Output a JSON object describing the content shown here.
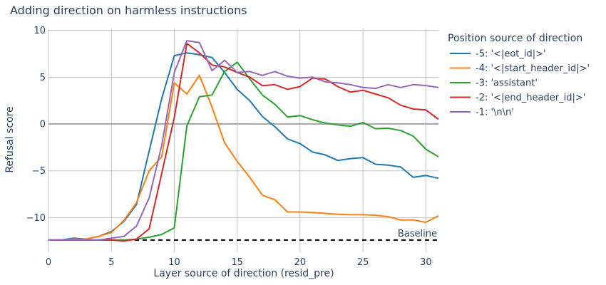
{
  "chart_data": {
    "type": "line",
    "title": "Adding direction on harmless instructions",
    "xlabel": "Layer source of direction (resid_pre)",
    "ylabel": "Refusal score",
    "xlim": [
      0,
      31
    ],
    "ylim": [
      -13.7,
      10.2
    ],
    "xticks": [
      0,
      5,
      10,
      15,
      20,
      25,
      30
    ],
    "yticks": [
      -10,
      -5,
      0,
      5,
      10
    ],
    "grid": true,
    "legend_title": "Position source of direction",
    "legend_position": "right",
    "baseline": {
      "label": "Baseline",
      "value": -12.4,
      "color": "#000000"
    },
    "x": [
      0,
      1,
      2,
      3,
      4,
      5,
      6,
      7,
      8,
      9,
      10,
      11,
      12,
      13,
      14,
      15,
      16,
      17,
      18,
      19,
      20,
      21,
      22,
      23,
      24,
      25,
      26,
      27,
      28,
      29,
      30,
      31
    ],
    "series": [
      {
        "name": "-5: '<|eot_id|>'",
        "color": "#1f77b4",
        "values": [
          -12.4,
          -12.4,
          -12.2,
          -12.3,
          -12.0,
          -11.5,
          -10.4,
          -8.6,
          -2.9,
          2.7,
          7.3,
          7.6,
          7.4,
          7.1,
          5.5,
          3.7,
          2.5,
          0.8,
          -0.3,
          -1.6,
          -2.1,
          -3.0,
          -3.3,
          -3.9,
          -3.7,
          -3.6,
          -4.3,
          -4.4,
          -4.6,
          -5.7,
          -5.5,
          -5.8
        ]
      },
      {
        "name": "-4: '<|start_header_id|>'",
        "color": "#ff7f0e",
        "values": [
          -12.4,
          -12.4,
          -12.3,
          -12.3,
          -12.0,
          -11.6,
          -10.3,
          -8.4,
          -5.0,
          -3.5,
          4.4,
          3.2,
          5.2,
          1.8,
          -2.0,
          -4.0,
          -5.7,
          -7.6,
          -8.1,
          -9.4,
          -9.4,
          -9.45,
          -9.55,
          -9.65,
          -9.7,
          -9.7,
          -9.75,
          -9.9,
          -10.25,
          -10.25,
          -10.5,
          -9.8
        ]
      },
      {
        "name": "-3: 'assistant'",
        "color": "#2ca02c",
        "values": [
          -12.4,
          -12.4,
          -12.4,
          -12.4,
          -12.4,
          -12.4,
          -12.4,
          -12.3,
          -12.1,
          -11.8,
          -11.1,
          -0.2,
          2.9,
          3.1,
          5.6,
          6.6,
          4.8,
          3.1,
          2.1,
          0.75,
          0.9,
          0.45,
          0.1,
          -0.1,
          -0.25,
          0.15,
          -0.5,
          -0.45,
          -0.7,
          -1.3,
          -2.7,
          -3.5
        ]
      },
      {
        "name": "-2: '<|end_header_id|>'",
        "color": "#d62728",
        "values": [
          -12.4,
          -12.4,
          -12.4,
          -12.4,
          -12.4,
          -12.4,
          -12.5,
          -12.3,
          -11.2,
          -5.3,
          0.7,
          8.6,
          7.6,
          6.3,
          6.1,
          5.5,
          5.0,
          4.1,
          4.2,
          3.7,
          4.0,
          4.9,
          4.8,
          4.0,
          3.4,
          3.6,
          3.2,
          2.8,
          2.0,
          1.6,
          1.5,
          0.5
        ]
      },
      {
        "name": "-1: '\\n\\n'",
        "color": "#9467bd",
        "values": [
          -12.4,
          -12.4,
          -12.4,
          -12.4,
          -12.4,
          -12.2,
          -12.0,
          -10.9,
          -7.9,
          -2.3,
          5.5,
          8.9,
          8.7,
          5.7,
          6.8,
          5.5,
          5.6,
          5.2,
          5.6,
          5.1,
          4.9,
          5.0,
          4.5,
          4.4,
          4.2,
          3.9,
          3.8,
          4.2,
          3.9,
          4.2,
          4.1,
          3.9
        ]
      }
    ]
  }
}
